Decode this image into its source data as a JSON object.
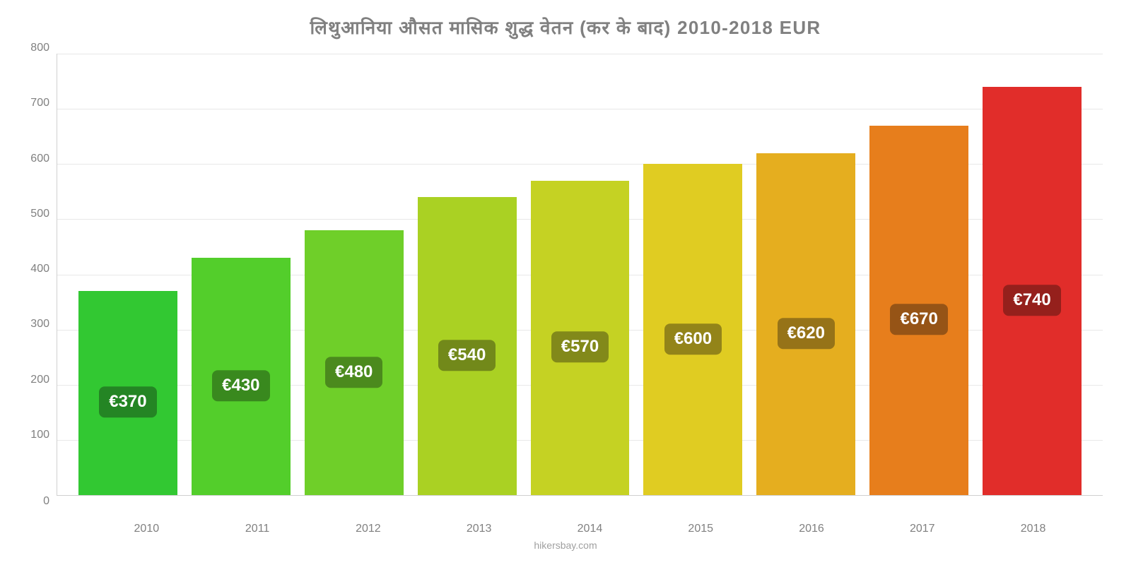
{
  "chart": {
    "type": "bar",
    "title": "लिथुआनिया औसत मासिक शुद्ध वेतन (कर के बाद) 2010-2018 EUR",
    "title_color": "#808080",
    "title_fontsize": 26,
    "background_color": "#ffffff",
    "grid_color": "#e8e8e8",
    "axis_color": "#d0d0d0",
    "label_color": "#808080",
    "label_fontsize": 16,
    "ylim": [
      0,
      800
    ],
    "ytick_step": 100,
    "yticks": [
      800,
      700,
      600,
      500,
      400,
      300,
      200,
      100,
      0
    ],
    "categories": [
      "2010",
      "2011",
      "2012",
      "2013",
      "2014",
      "2015",
      "2016",
      "2017",
      "2018"
    ],
    "values": [
      370,
      430,
      480,
      540,
      570,
      600,
      620,
      670,
      740
    ],
    "bar_labels": [
      "€370",
      "€430",
      "€480",
      "€540",
      "€570",
      "€600",
      "€620",
      "€670",
      "€740"
    ],
    "bar_colors": [
      "#32c832",
      "#53ce2b",
      "#6fcf29",
      "#aad123",
      "#c5d223",
      "#e0cc22",
      "#e5ae1f",
      "#e77e1c",
      "#e12d2a"
    ],
    "label_bg_colors": [
      "#248524",
      "#39891e",
      "#4b8a1d",
      "#72891a",
      "#82891a",
      "#938419",
      "#967318",
      "#965416",
      "#95201c"
    ],
    "bar_label_fontsize": 24,
    "footer": "hikersbay.com",
    "footer_color": "#a0a0a0"
  }
}
